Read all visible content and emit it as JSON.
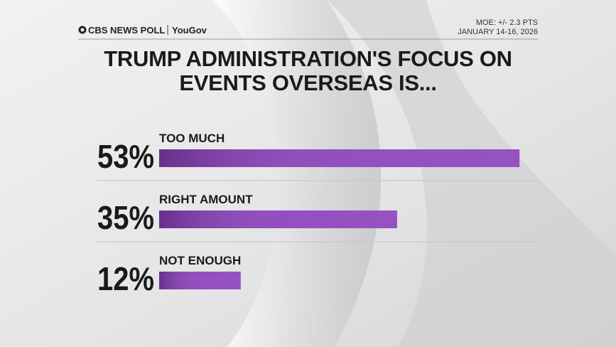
{
  "chart_data": {
    "type": "bar",
    "title": "TRUMP ADMINISTRATION'S FOCUS ON EVENTS OVERSEAS IS...",
    "source": "CBS NEWS POLL",
    "partner": "YouGov",
    "moe": "MOE: +/- 2.3 PTS",
    "date": "JANUARY 14-16, 2026",
    "categories": [
      "TOO MUCH",
      "RIGHT AMOUNT",
      "NOT ENOUGH"
    ],
    "values": [
      53,
      35,
      12
    ],
    "value_labels": [
      "53%",
      "35%",
      "12%"
    ],
    "color": "#8a3fbb"
  }
}
